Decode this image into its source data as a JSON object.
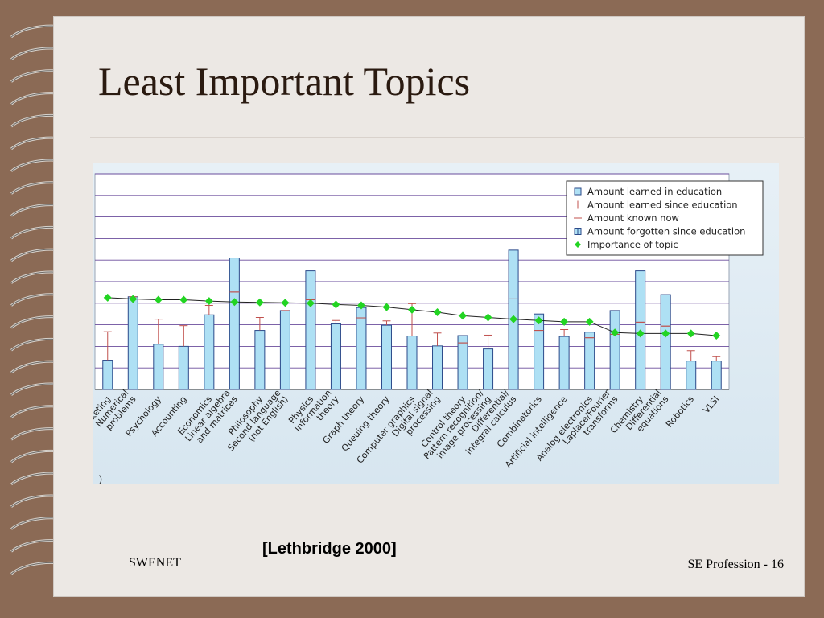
{
  "slide": {
    "title": "Least Important Topics",
    "citation": "[Lethbridge 2000]",
    "footer_left": "SWENET",
    "footer_right": "SE Profession - 16",
    "stray_mark": ")"
  },
  "colors": {
    "bar_fill": "#aee0f4",
    "bar_stroke": "#2b4a8a",
    "whisker": "#c0504d",
    "diamond": "#22d422",
    "grid": "#6a4c9c",
    "slide_bg": "#ece8e4",
    "border": "#8b6a55"
  },
  "chart_data": {
    "type": "bar",
    "ylim": [
      0,
      5
    ],
    "yticks": [
      "0.0",
      "0.5",
      "1.0",
      "1.5",
      "2.0",
      "2.5",
      "3.0",
      "3.5",
      "4.0",
      "4.5",
      "5.0"
    ],
    "grid": true,
    "legend_position": "top-right",
    "categories": [
      [
        "Marketing"
      ],
      [
        "Numerical",
        "problems"
      ],
      [
        "Psychology"
      ],
      [
        "Accounting"
      ],
      [
        "Economics"
      ],
      [
        "Linear algebra",
        "and matrices"
      ],
      [
        "Philosophy"
      ],
      [
        "Second language",
        "(not English)"
      ],
      [
        "Physics"
      ],
      [
        "Information",
        "theory"
      ],
      [
        "Graph theory"
      ],
      [
        "Queuing theory"
      ],
      [
        "Computer graphics"
      ],
      [
        "Digital signal",
        "processing"
      ],
      [
        "Control theory"
      ],
      [
        "Pattern recognition/",
        "image processing"
      ],
      [
        "Differential/",
        "integral calculus"
      ],
      [
        "Combinatorics"
      ],
      [
        "Artificial intelligence"
      ],
      [
        "Analog electronics"
      ],
      [
        "Laplace/Fourier",
        "transforms"
      ],
      [
        "Chemistry"
      ],
      [
        "Differential",
        "equations"
      ],
      [
        "Robotics"
      ],
      [
        "VLSI"
      ]
    ],
    "series": [
      {
        "name": "Amount learned in education",
        "values": [
          0.68,
          2.15,
          1.05,
          1.0,
          1.73,
          3.05,
          1.37,
          1.83,
          2.75,
          1.52,
          1.9,
          1.49,
          1.24,
          1.01,
          1.25,
          0.94,
          3.23,
          1.75,
          1.23,
          1.33,
          1.83,
          2.75,
          2.2,
          0.66,
          0.66
        ]
      },
      {
        "name": "Amount learned since education",
        "values": [
          0.66,
          0.0,
          0.58,
          0.48,
          0.22,
          0.0,
          0.3,
          0.0,
          0.0,
          0.08,
          0.0,
          0.1,
          0.75,
          0.3,
          0.0,
          0.32,
          0.0,
          0.0,
          0.16,
          0.0,
          0.0,
          0.0,
          0.0,
          0.24,
          0.1
        ]
      },
      {
        "name": "Amount known now",
        "values": [
          1.34,
          2.15,
          1.63,
          1.48,
          1.95,
          2.26,
          1.67,
          1.83,
          2.08,
          1.6,
          1.66,
          1.59,
          1.99,
          1.31,
          1.08,
          1.26,
          2.1,
          1.37,
          1.39,
          1.2,
          1.28,
          1.56,
          1.47,
          0.9,
          0.76
        ]
      },
      {
        "name": "Amount forgotten since education",
        "values": [
          0.0,
          0.0,
          0.0,
          0.0,
          0.0,
          0.79,
          0.0,
          0.0,
          0.67,
          0.0,
          0.24,
          0.0,
          0.0,
          0.0,
          0.17,
          0.0,
          1.13,
          0.38,
          0.0,
          0.13,
          0.55,
          1.19,
          0.73,
          0.0,
          0.0
        ]
      },
      {
        "name": "Importance of topic",
        "values": [
          2.13,
          2.1,
          2.08,
          2.08,
          2.05,
          2.03,
          2.02,
          2.01,
          2.0,
          1.97,
          1.95,
          1.91,
          1.85,
          1.79,
          1.71,
          1.67,
          1.63,
          1.6,
          1.57,
          1.57,
          1.32,
          1.3,
          1.3,
          1.3,
          1.25
        ]
      }
    ]
  }
}
